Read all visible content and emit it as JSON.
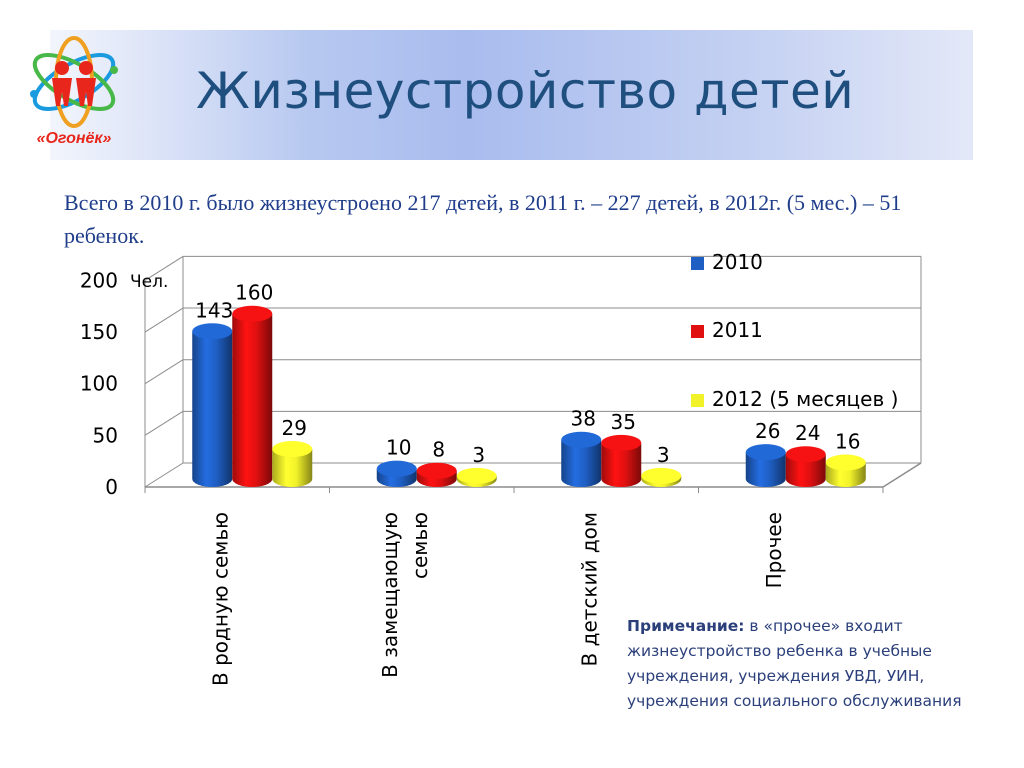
{
  "header": {
    "title": "Жизнеустройство детей",
    "logo_text": "«Огонёк»"
  },
  "summary": "Всего в 2010 г. было жизнеустроено 217 детей, в 2011 г. – 227 детей, в 2012г. (5 мес.) – 51 ребенок.",
  "note": {
    "label": "Примечание:",
    "text": " в «прочее» входит жизнеустройство ребенка в учебные учреждения, учреждения УВД, УИН, учреждения социального обслуживания"
  },
  "colors": {
    "series_2010": "#1f5fc4",
    "series_2011": "#e01010",
    "series_2012": "#f2f22a",
    "title": "#1f4f7f",
    "logo": "#e8261b"
  },
  "chart_data": {
    "type": "bar",
    "ylabel": "Чел.",
    "ylim": [
      0,
      200
    ],
    "yticks": [
      "0",
      "50",
      "100",
      "150",
      "200"
    ],
    "ytick_values": [
      0,
      50,
      100,
      150,
      200
    ],
    "categories": [
      "В родную семью",
      "В замещающую семью",
      "В детский дом",
      "Прочее"
    ],
    "series": [
      {
        "name": "2010",
        "values": [
          143,
          10,
          38,
          26
        ]
      },
      {
        "name": "2011",
        "values": [
          160,
          8,
          35,
          24
        ]
      },
      {
        "name": "2012 (5 месяцев )",
        "values": [
          29,
          3,
          3,
          16
        ]
      }
    ],
    "legend_position": "right",
    "grid": true
  }
}
